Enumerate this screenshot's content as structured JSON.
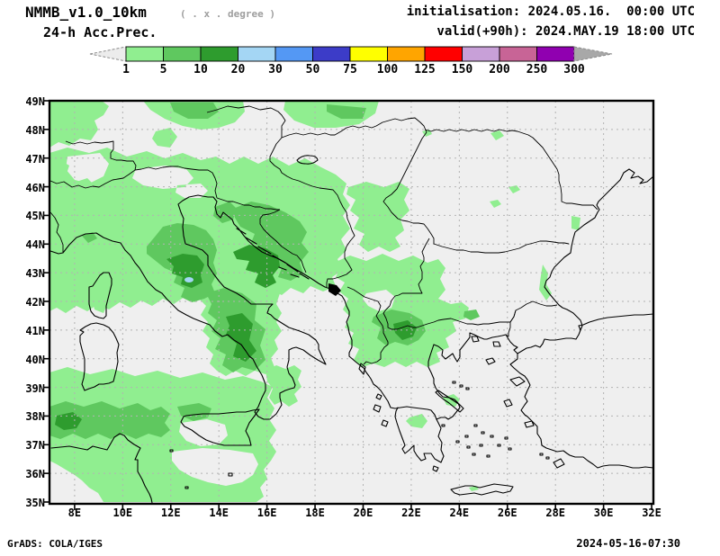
{
  "header": {
    "model": "NMMB_v1.0_10km",
    "resolution_note": "( . x . degree )",
    "product": "24-h Acc.Prec.",
    "init_line": "initialisation: 2024.05.16.  00:00 UTC",
    "valid_line": "valid(+90h): 2024.MAY.19 18:00 UTC"
  },
  "colorbar": {
    "tick_labels": [
      "1",
      "5",
      "10",
      "20",
      "30",
      "50",
      "75",
      "100",
      "125",
      "150",
      "200",
      "250",
      "300"
    ],
    "segment_colors": [
      "#90ee90",
      "#5fc85f",
      "#2e9c2e",
      "#a4d6f4",
      "#5498f4",
      "#3c3cc8",
      "#ffff00",
      "#ffa500",
      "#ff0000",
      "#c8a0d8",
      "#c86496",
      "#9000b0"
    ],
    "left_arrow_color": "#ececec",
    "right_arrow_color": "#a8a8a8"
  },
  "map": {
    "lat_labels": [
      "49N",
      "48N",
      "47N",
      "46N",
      "45N",
      "44N",
      "43N",
      "42N",
      "41N",
      "40N",
      "39N",
      "38N",
      "37N",
      "36N",
      "35N"
    ],
    "lon_labels": [
      "8E",
      "10E",
      "12E",
      "14E",
      "16E",
      "18E",
      "20E",
      "22E",
      "24E",
      "26E",
      "28E",
      "30E",
      "32E"
    ],
    "background": "#efefef",
    "grid_color": "#b2b2b2"
  },
  "footer": {
    "left": "GrADS: COLA/IGES",
    "right": "2024-05-16-07:30"
  }
}
